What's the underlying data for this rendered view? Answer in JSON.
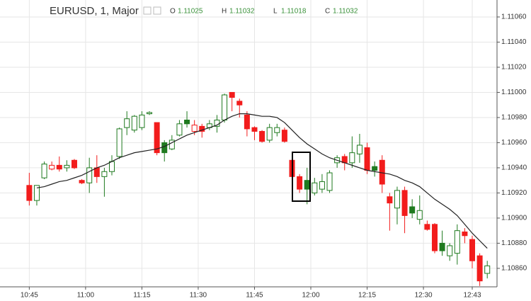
{
  "chart_data": {
    "type": "candlestick",
    "title": "EURUSD, 1, Major",
    "ohlc_legend": [
      {
        "label": "O",
        "value": 1.11025
      },
      {
        "label": "H",
        "value": 1.11032
      },
      {
        "label": "L",
        "value": 1.11018
      },
      {
        "label": "C",
        "value": 1.11032
      }
    ],
    "x": [
      645,
      647,
      649,
      651,
      653,
      655,
      657,
      659,
      661,
      663,
      665,
      667,
      669,
      671,
      673,
      675,
      677,
      679,
      681,
      683,
      685,
      687,
      689,
      691,
      693,
      695,
      697,
      699,
      701,
      703,
      705,
      707,
      709,
      711,
      713,
      715,
      717,
      719,
      721,
      723,
      725,
      727,
      729,
      731,
      733,
      735,
      737,
      739,
      741,
      743,
      745,
      747,
      749,
      751,
      753,
      755,
      757,
      759,
      761,
      763,
      765,
      767
    ],
    "open": [
      1.10926,
      1.10914,
      1.10932,
      1.10939,
      1.10942,
      1.1094,
      1.10946,
      1.1093,
      1.10928,
      1.1094,
      1.10933,
      1.10937,
      1.10949,
      1.10972,
      1.1097,
      1.10972,
      1.10983,
      1.10976,
      1.1096,
      1.10955,
      1.10966,
      1.10978,
      1.10969,
      1.10973,
      1.10972,
      1.10973,
      1.10978,
      1.11,
      1.10993,
      1.10982,
      1.10972,
      1.10969,
      1.10962,
      1.10968,
      1.1097,
      1.10946,
      1.10933,
      1.1093,
      1.1092,
      1.10923,
      1.10922,
      1.10944,
      1.10949,
      1.10944,
      1.10951,
      1.10956,
      1.10941,
      1.10946,
      1.10917,
      1.10908,
      1.10922,
      1.10909,
      1.10899,
      1.10895,
      1.10895,
      1.1088,
      1.1087,
      1.10872,
      1.10889,
      1.10883,
      1.1087,
      1.10856
    ],
    "high": [
      1.10936,
      1.10926,
      1.10945,
      1.10945,
      1.10949,
      1.10946,
      1.10947,
      1.10931,
      1.10948,
      1.1095,
      1.1094,
      1.1095,
      1.10972,
      1.10985,
      1.10982,
      1.10985,
      1.10985,
      1.10976,
      1.10962,
      1.10966,
      1.10978,
      1.10985,
      1.10978,
      1.10975,
      1.10978,
      1.10982,
      1.10999,
      1.11,
      1.10995,
      1.10985,
      1.10973,
      1.1097,
      1.10975,
      1.10975,
      1.10972,
      1.10946,
      1.10935,
      1.1094,
      1.10932,
      1.10935,
      1.10938,
      1.1095,
      1.10951,
      1.10965,
      1.10967,
      1.1096,
      1.10945,
      1.1095,
      1.1092,
      1.10925,
      1.10925,
      1.10915,
      1.10918,
      1.10898,
      1.10896,
      1.1089,
      1.1088,
      1.10895,
      1.10892,
      1.10886,
      1.10872,
      1.10866
    ],
    "low": [
      1.1091,
      1.1091,
      1.10931,
      1.10938,
      1.10937,
      1.10937,
      1.10939,
      1.10927,
      1.1092,
      1.10928,
      1.10917,
      1.10934,
      1.10947,
      1.10966,
      1.10968,
      1.1097,
      1.10982,
      1.1095,
      1.10945,
      1.10954,
      1.10965,
      1.10972,
      1.10966,
      1.10964,
      1.1097,
      1.10968,
      1.10976,
      1.10985,
      1.1098,
      1.10965,
      1.10962,
      1.1096,
      1.1096,
      1.10965,
      1.1096,
      1.10922,
      1.1092,
      1.10911,
      1.10918,
      1.1092,
      1.1092,
      1.1094,
      1.10938,
      1.1094,
      1.10944,
      1.10935,
      1.10933,
      1.1092,
      1.1089,
      1.10895,
      1.10888,
      1.109,
      1.10895,
      1.1089,
      1.10872,
      1.1087,
      1.10866,
      1.10863,
      1.1088,
      1.1086,
      1.10846,
      1.10852
    ],
    "close": [
      1.10914,
      1.10926,
      1.10943,
      1.10942,
      1.10939,
      1.10942,
      1.1094,
      1.10928,
      1.1094,
      1.10933,
      1.10937,
      1.10945,
      1.10971,
      1.10979,
      1.10981,
      1.10982,
      1.10984,
      1.10952,
      1.10952,
      1.10962,
      1.10975,
      1.10975,
      1.10974,
      1.10969,
      1.10975,
      1.10978,
      1.10998,
      1.10996,
      1.1099,
      1.10971,
      1.10969,
      1.10961,
      1.10972,
      1.10972,
      1.10961,
      1.10933,
      1.10923,
      1.10923,
      1.10928,
      1.10929,
      1.10936,
      1.10948,
      1.10944,
      1.10952,
      1.10958,
      1.10938,
      1.10938,
      1.10927,
      1.10912,
      1.10922,
      1.10902,
      1.10904,
      1.10906,
      1.10891,
      1.10874,
      1.10874,
      1.10878,
      1.1089,
      1.10886,
      1.10866,
      1.1085,
      1.10862
    ],
    "up_color": "#1f7a1f",
    "down_color": "#f21c1c",
    "moving_average": {
      "color": "#222222",
      "values": [
        null,
        1.10924,
        1.10925,
        1.10927,
        1.10929,
        1.1093,
        1.10932,
        1.10934,
        1.10937,
        1.1094,
        1.10942,
        1.10945,
        1.10948,
        1.1095,
        1.10952,
        1.10953,
        1.10954,
        1.10955,
        1.10957,
        1.1096,
        1.10963,
        1.10966,
        1.10968,
        1.1097,
        1.10972,
        1.10974,
        1.10978,
        1.10981,
        1.10983,
        1.10983,
        1.10982,
        1.10981,
        1.10981,
        1.1098,
        1.10976,
        1.1097,
        1.10964,
        1.10959,
        1.10955,
        1.10951,
        1.10948,
        1.10946,
        1.10944,
        1.10942,
        1.1094,
        1.10938,
        1.10937,
        1.10936,
        1.10935,
        1.10933,
        1.1093,
        1.10928,
        1.10925,
        1.1092,
        1.10915,
        1.10911,
        1.10907,
        1.10902,
        1.10895,
        1.10888,
        1.10882,
        1.10876
      ]
    },
    "xlim": [
      637.2,
      769.6
    ],
    "xticks": [
      {
        "value": 645,
        "label": "10:45"
      },
      {
        "value": 660,
        "label": "11:00"
      },
      {
        "value": 675,
        "label": "11:15"
      },
      {
        "value": 690,
        "label": "11:30"
      },
      {
        "value": 705,
        "label": "11:45"
      },
      {
        "value": 720,
        "label": "12:00"
      },
      {
        "value": 735,
        "label": "12:15"
      },
      {
        "value": 750,
        "label": "12:30"
      },
      {
        "value": 763,
        "label": "12:43"
      }
    ],
    "ylim": [
      1.108453,
      1.110735
    ],
    "yticks": [
      {
        "value": 1.1086,
        "label": "1.10860"
      },
      {
        "value": 1.1088,
        "label": "1.10880"
      },
      {
        "value": 1.109,
        "label": "1.10900"
      },
      {
        "value": 1.1092,
        "label": "1.10920"
      },
      {
        "value": 1.1094,
        "label": "1.10940"
      },
      {
        "value": 1.1096,
        "label": "1.10960"
      },
      {
        "value": 1.1098,
        "label": "1.10980"
      },
      {
        "value": 1.11,
        "label": "1.11000"
      },
      {
        "value": 1.1102,
        "label": "1.11020"
      },
      {
        "value": 1.1104,
        "label": "1.11040"
      },
      {
        "value": 1.1106,
        "label": "1.11060"
      }
    ],
    "grid": true
  }
}
